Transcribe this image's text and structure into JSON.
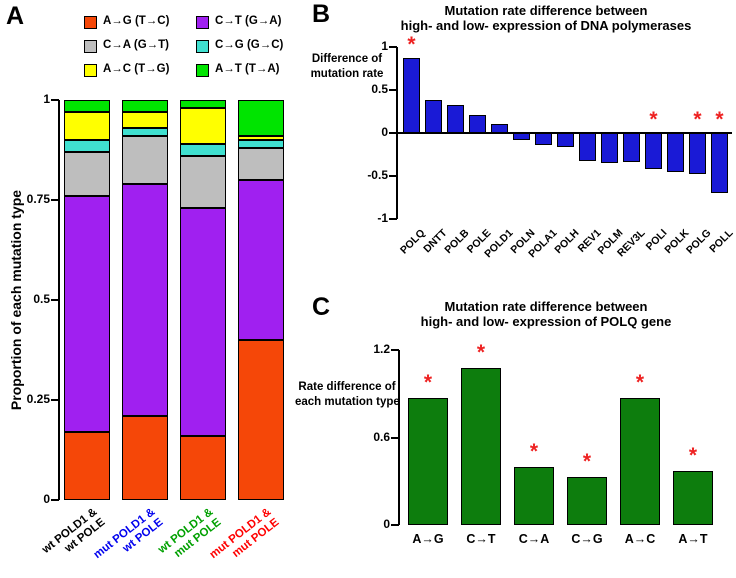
{
  "significance_marker": "*",
  "significance_color": "#EE2222",
  "panelA": {
    "label": "A",
    "ylabel": "Proportion of each mutation type",
    "yticks": [
      "1",
      "0.75",
      "0.5",
      "0.25",
      "0"
    ],
    "legend": [
      {
        "label": "A→G (T→C)",
        "color": "#F54708"
      },
      {
        "label": "C→A (G→T)",
        "color": "#BEBEBE"
      },
      {
        "label": "A→C (T→G)",
        "color": "#FFFF00"
      },
      {
        "label": "C→T (G→A)",
        "color": "#A020F0"
      },
      {
        "label": "C→G (G→C)",
        "color": "#40E0D0"
      },
      {
        "label": "A→T (T→A)",
        "color": "#00E400"
      }
    ],
    "chart_data": {
      "type": "bar",
      "stacked": true,
      "ylim": [
        0,
        1
      ],
      "legend_position": "top",
      "categories": [
        {
          "line1": "wt POLD1 &",
          "line2": "wt POLE",
          "color": "#000000"
        },
        {
          "line1": "mut POLD1 &",
          "line2": "wt POLE",
          "color": "#0000EE"
        },
        {
          "line1": "wt POLD1 &",
          "line2": "mut POLE",
          "color": "#00A000"
        },
        {
          "line1": "mut POLD1 &",
          "line2": "mut POLE",
          "color": "#FF0000"
        }
      ],
      "series": [
        {
          "name": "A→G (T→C)",
          "color": "#F54708",
          "values": [
            0.17,
            0.21,
            0.16,
            0.4
          ]
        },
        {
          "name": "C→T (G→A)",
          "color": "#A020F0",
          "values": [
            0.59,
            0.58,
            0.57,
            0.4
          ]
        },
        {
          "name": "C→A (G→T)",
          "color": "#BEBEBE",
          "values": [
            0.11,
            0.12,
            0.13,
            0.08
          ]
        },
        {
          "name": "C→G (G→C)",
          "color": "#40E0D0",
          "values": [
            0.03,
            0.02,
            0.03,
            0.02
          ]
        },
        {
          "name": "A→C (T→G)",
          "color": "#FFFF00",
          "values": [
            0.07,
            0.04,
            0.09,
            0.01
          ]
        },
        {
          "name": "A→T (T→A)",
          "color": "#00E400",
          "values": [
            0.03,
            0.03,
            0.02,
            0.09
          ]
        }
      ]
    }
  },
  "panelB": {
    "label": "B",
    "title_line1": "Mutation rate difference between",
    "title_line2": "high- and low- expression of DNA polymerases",
    "ylabel_line1": "Difference of",
    "ylabel_line2": "mutation rate",
    "chart_data": {
      "type": "bar",
      "title": "Mutation rate difference between high- and low- expression of DNA polymerases",
      "ylabel": "Difference of mutation rate",
      "ylim": [
        -1,
        1
      ],
      "yticks": [
        "1",
        "0.5",
        "0",
        "-0.5",
        "-1"
      ],
      "bar_color": "#1A1AD6",
      "categories": [
        "POLQ",
        "DNTT",
        "POLB",
        "POLE",
        "POLD1",
        "POLN",
        "POLA1",
        "POLH",
        "REV1",
        "POLM",
        "REV3L",
        "POLI",
        "POLK",
        "POLG",
        "POLL"
      ],
      "values": [
        0.87,
        0.38,
        0.32,
        0.21,
        0.1,
        -0.08,
        -0.14,
        -0.16,
        -0.33,
        -0.35,
        -0.34,
        -0.42,
        -0.45,
        -0.48,
        -0.7
      ],
      "significant": [
        "POLQ",
        "POLI",
        "POLG",
        "POLL"
      ]
    }
  },
  "panelC": {
    "label": "C",
    "title_line1": "Mutation rate difference between",
    "title_line2": "high- and low- expression of POLQ gene",
    "ylabel_line1": "Rate difference of",
    "ylabel_line2": "each mutation type",
    "chart_data": {
      "type": "bar",
      "title": "Mutation rate difference between high- and low- expression of POLQ gene",
      "ylabel": "Rate difference of each mutation type",
      "ylim": [
        0,
        1.2
      ],
      "yticks": [
        "0",
        "0.6",
        "1.2"
      ],
      "bar_color": "#0D7D0D",
      "categories": [
        "A→G",
        "C→T",
        "C→A",
        "C→G",
        "A→C",
        "A→T"
      ],
      "values": [
        0.87,
        1.08,
        0.4,
        0.33,
        0.87,
        0.37
      ],
      "significant": [
        "A→G",
        "C→T",
        "C→A",
        "C→G",
        "A→C",
        "A→T"
      ]
    }
  }
}
